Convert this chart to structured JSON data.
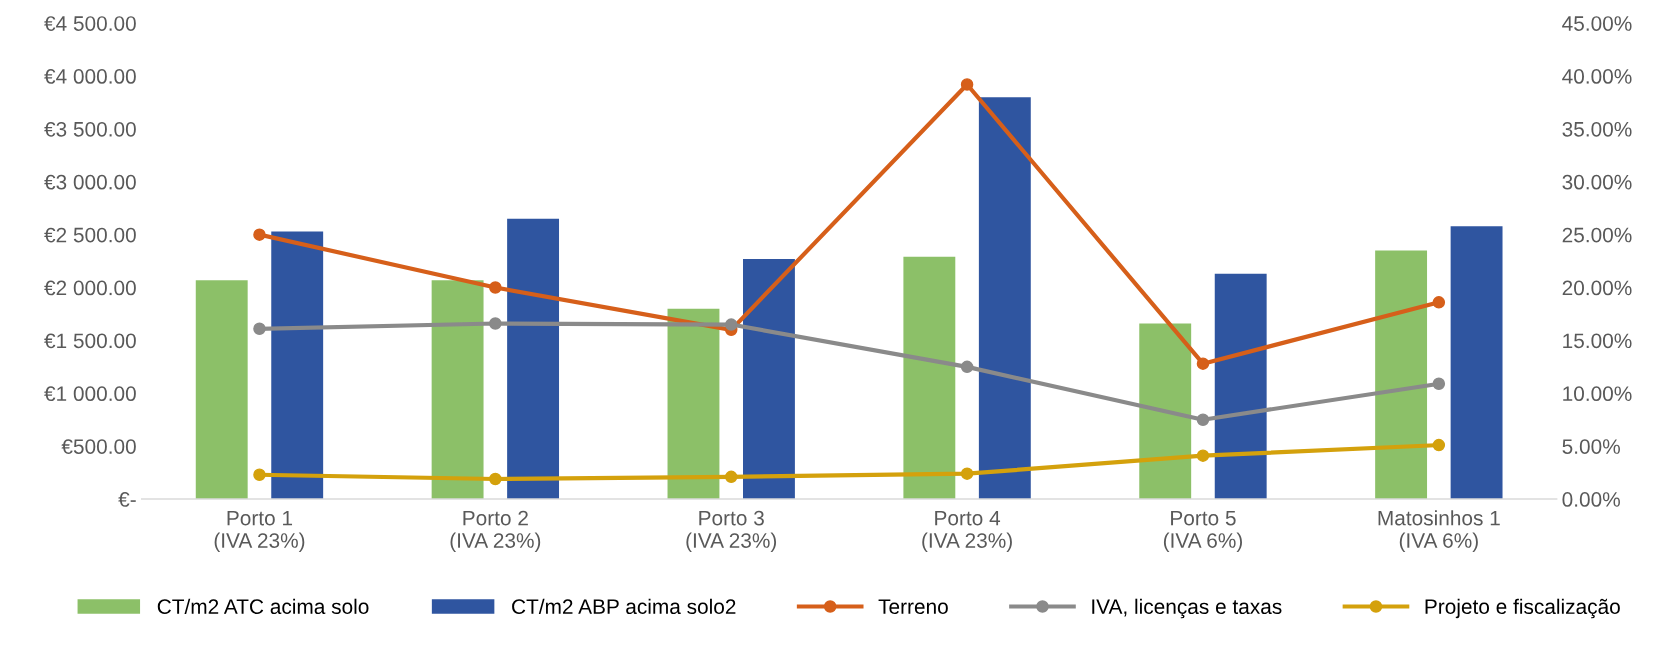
{
  "chart_data": {
    "type": "bar",
    "categories": [
      "Porto 1\n(IVA 23%)",
      "Porto 2\n(IVA 23%)",
      "Porto 3\n(IVA 23%)",
      "Porto 4\n(IVA 23%)",
      "Porto 5\n(IVA 6%)",
      "Matosinhos 1\n(IVA 6%)"
    ],
    "series": [
      {
        "name": "CT/m2 ATC acima solo",
        "color": "#8cc068",
        "values": [
          2070,
          2070,
          1800,
          2290,
          1660,
          2350
        ]
      },
      {
        "name": "CT/m2 ABP acima solo2",
        "color": "#2f55a0",
        "values": [
          2530,
          2650,
          2270,
          3800,
          2130,
          2580
        ]
      },
      {
        "name": "Terreno",
        "type": "line",
        "axis": "y2",
        "color": "#d65f1a",
        "values": [
          25.0,
          20.0,
          16.0,
          39.2,
          12.8,
          18.6
        ]
      },
      {
        "name": "IVA, licenças e taxas",
        "type": "line",
        "axis": "y2",
        "color": "#8a8a8a",
        "values": [
          16.1,
          16.6,
          16.5,
          12.5,
          7.5,
          10.9
        ]
      },
      {
        "name": "Projeto e fiscalização",
        "type": "line",
        "axis": "y2",
        "color": "#d4a10c",
        "values": [
          2.3,
          1.9,
          2.1,
          2.4,
          4.1,
          5.1
        ]
      }
    ],
    "ylim": [
      0,
      4500
    ],
    "yticks": [
      {
        "value": 0,
        "label": "€-"
      },
      {
        "value": 500,
        "label": "€500.00"
      },
      {
        "value": 1000,
        "label": "€1 000.00"
      },
      {
        "value": 1500,
        "label": "€1 500.00"
      },
      {
        "value": 2000,
        "label": "€2 000.00"
      },
      {
        "value": 2500,
        "label": "€2 500.00"
      },
      {
        "value": 3000,
        "label": "€3 000.00"
      },
      {
        "value": 3500,
        "label": "€3 500.00"
      },
      {
        "value": 4000,
        "label": "€4 000.00"
      },
      {
        "value": 4500,
        "label": "€4 500.00"
      }
    ],
    "y2lim": [
      0,
      45
    ],
    "y2ticks": [
      {
        "value": 0,
        "label": "0.00%"
      },
      {
        "value": 5,
        "label": "5.00%"
      },
      {
        "value": 10,
        "label": "10.00%"
      },
      {
        "value": 15,
        "label": "15.00%"
      },
      {
        "value": 20,
        "label": "20.00%"
      },
      {
        "value": 25,
        "label": "25.00%"
      },
      {
        "value": 30,
        "label": "30.00%"
      },
      {
        "value": 35,
        "label": "35.00%"
      },
      {
        "value": 40,
        "label": "40.00%"
      },
      {
        "value": 45,
        "label": "45.00%"
      }
    ],
    "legend": "bottom",
    "marker": "circle",
    "line_style": "solid",
    "grid": false
  }
}
